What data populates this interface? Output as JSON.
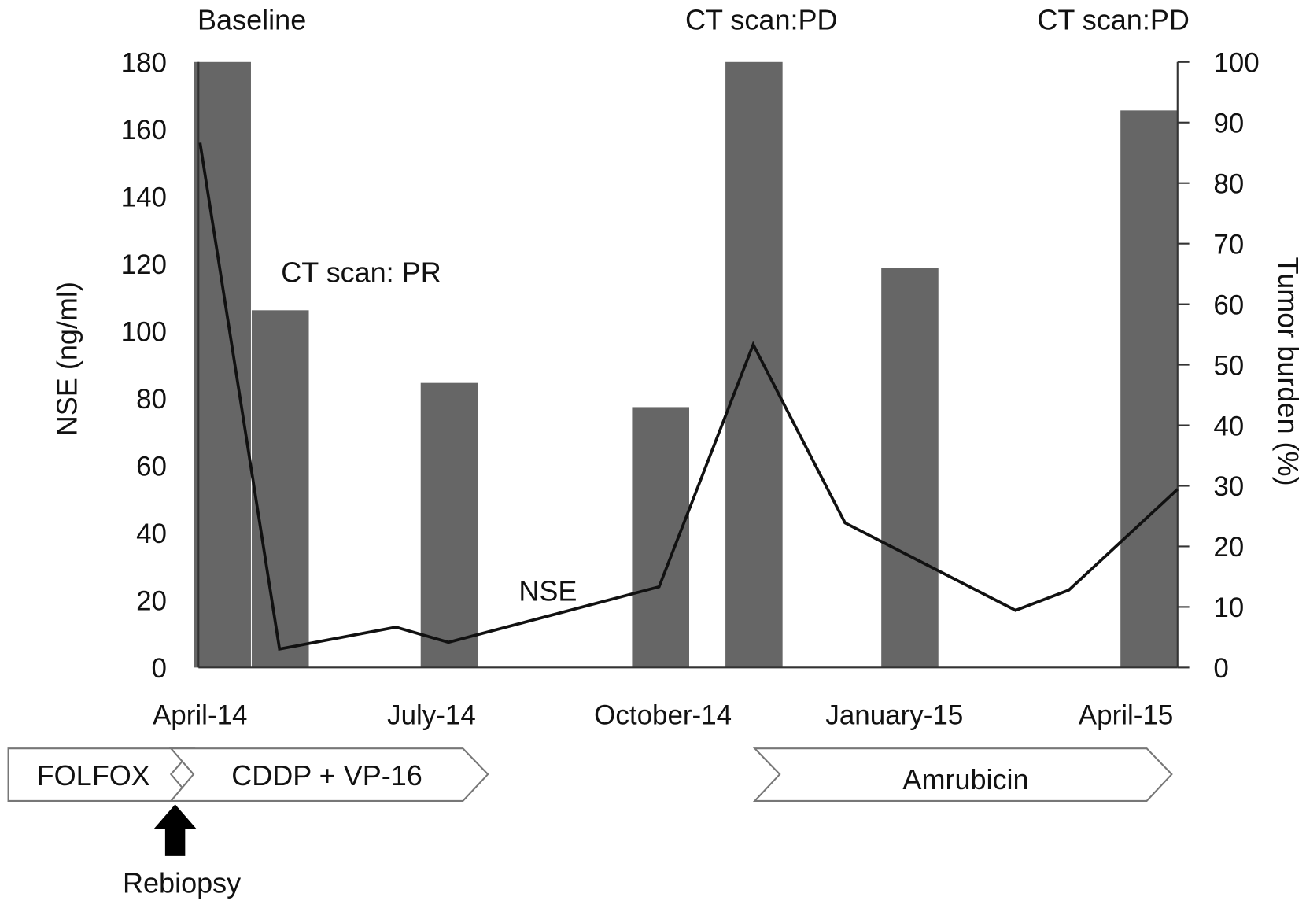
{
  "chart_data": {
    "type": "bar+line",
    "title": "",
    "xlabel": "",
    "ylabel": "NSE (ng/ml)",
    "y2label": "Tumor burden (%)",
    "ylim": [
      0,
      180
    ],
    "y2lim": [
      0,
      100
    ],
    "yticks": [
      "0",
      "20",
      "40",
      "60",
      "80",
      "100",
      "120",
      "140",
      "160",
      "180"
    ],
    "y2ticks": [
      "0",
      "10",
      "20",
      "30",
      "40",
      "50",
      "60",
      "70",
      "80",
      "90",
      "100"
    ],
    "x_unit": "months since April-14",
    "xlim": [
      -0.02,
      12.67
    ],
    "xtick_positions": [
      0,
      3,
      6,
      9,
      12
    ],
    "xtick_labels": [
      "April-14",
      "July-14",
      "October-14",
      "January-15",
      "April-15"
    ],
    "bars": {
      "name": "Tumor burden",
      "axis": "right",
      "color": "#666666",
      "width_months": 0.74,
      "x": [
        0.29,
        1.04,
        3.23,
        5.97,
        7.18,
        9.2,
        12.3
      ],
      "values": [
        100,
        59,
        47,
        43,
        100,
        66,
        92
      ]
    },
    "line": {
      "name": "NSE",
      "axis": "left",
      "color": "#111111",
      "x": [
        0,
        1.03,
        2.54,
        3.22,
        5.95,
        7.17,
        8.36,
        10.57,
        11.26,
        12.67
      ],
      "values": [
        156,
        5.5,
        12,
        7.5,
        24,
        96,
        43,
        17,
        23,
        53
      ]
    },
    "annotations": [
      {
        "id": "baseline",
        "text": "Baseline"
      },
      {
        "id": "pr",
        "text": "CT scan: PR"
      },
      {
        "id": "pd1",
        "text": "CT scan:PD"
      },
      {
        "id": "pd2",
        "text": "CT scan:PD"
      },
      {
        "id": "nse",
        "text": "NSE"
      }
    ],
    "treatments": [
      "FOLFOX",
      "CDDP + VP-16",
      "Amrubicin"
    ],
    "event": "Rebiopsy"
  }
}
